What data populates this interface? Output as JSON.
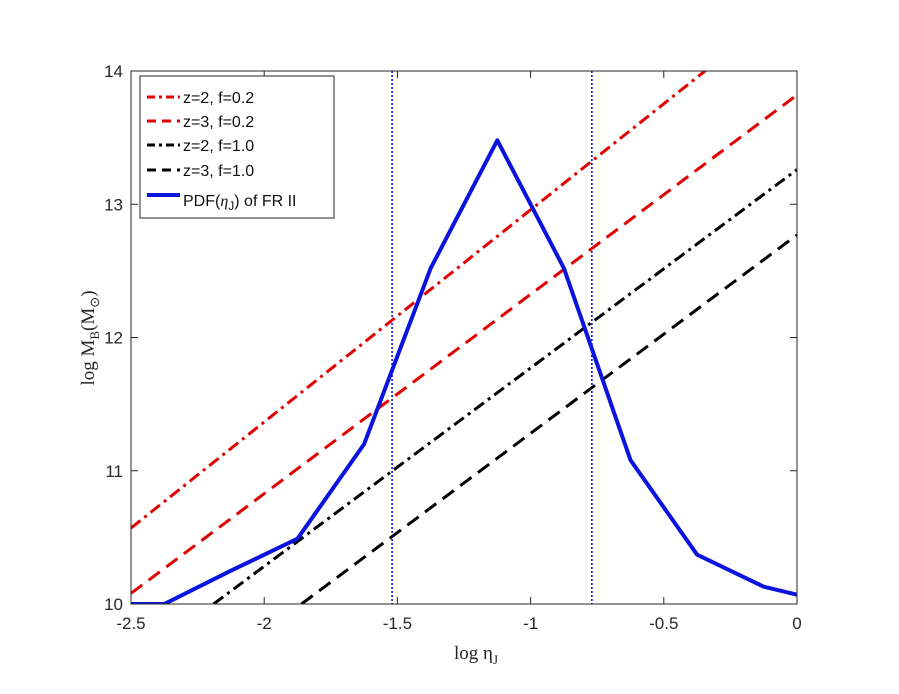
{
  "chart_data": {
    "type": "line",
    "xlabel": "log η",
    "xlabel_sub": "J",
    "ylabel_prefix": "log M",
    "ylabel_sub": "B",
    "ylabel_unit": "(M",
    "ylabel_unit_sub": "⊙",
    "ylabel_close": ")",
    "xlim": [
      -2.5,
      0
    ],
    "ylim": [
      10,
      14
    ],
    "xticks": [
      -2.5,
      -2,
      -1.5,
      -1,
      -0.5,
      0
    ],
    "xtick_labels": [
      "-2.5",
      "-2",
      "-1.5",
      "-1",
      "-0.5",
      "0"
    ],
    "yticks": [
      10,
      11,
      12,
      13,
      14
    ],
    "ytick_labels": [
      "10",
      "11",
      "12",
      "13",
      "14"
    ],
    "grid": false,
    "legend_position": "top-left",
    "series": [
      {
        "name": "z=2, f=0.2",
        "color": "#e00000",
        "style": "dashdot",
        "x": [
          -2.5,
          0
        ],
        "y": [
          10.57,
          14.55
        ]
      },
      {
        "name": "z=3, f=0.2",
        "color": "#e00000",
        "style": "dashed",
        "x": [
          -2.5,
          0
        ],
        "y": [
          10.08,
          13.82
        ]
      },
      {
        "name": "z=2, f=1.0",
        "color": "#000000",
        "style": "dashdot",
        "x": [
          -2.19,
          0
        ],
        "y": [
          10.0,
          13.26
        ]
      },
      {
        "name": "z=3, f=1.0",
        "color": "#000000",
        "style": "dashed",
        "x": [
          -1.86,
          0
        ],
        "y": [
          10.0,
          12.77
        ]
      },
      {
        "name_prefix": "PDF(",
        "name_symbol": "η",
        "name_sub": "J",
        "name_suffix": ") of FR II",
        "color": "#0a14dc",
        "style": "solid",
        "x": [
          -2.5,
          -2.375,
          -2.125,
          -1.875,
          -1.625,
          -1.375,
          -1.125,
          -0.875,
          -0.625,
          -0.375,
          -0.125,
          0
        ],
        "y": [
          10.0,
          10.0,
          10.25,
          10.49,
          11.2,
          12.52,
          13.48,
          12.52,
          11.08,
          10.37,
          10.13,
          10.07
        ]
      }
    ],
    "vlines": [
      {
        "x": -1.52,
        "color": "#0a14dc",
        "style": "dotted"
      },
      {
        "x": -0.77,
        "color": "#0a14dc",
        "style": "dotted"
      }
    ]
  }
}
